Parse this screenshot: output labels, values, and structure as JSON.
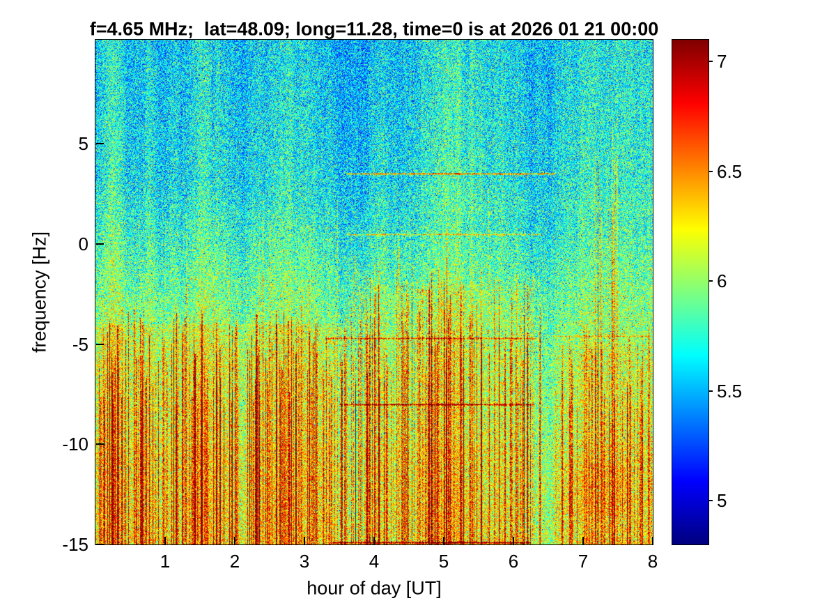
{
  "figure": {
    "background": "#ffffff"
  },
  "chart_data": {
    "type": "heatmap",
    "title": "f=4.65 MHz;  lat=48.09; long=11.28, time=0 is at 2026 01 21 00:00",
    "xlabel": "hour of day [UT]",
    "ylabel": "frequency [Hz]",
    "x_range": [
      0,
      8
    ],
    "y_range": [
      -15,
      10.2
    ],
    "x_ticks": [
      1,
      2,
      3,
      4,
      5,
      6,
      7,
      8
    ],
    "y_ticks": [
      5,
      0,
      -5,
      -10,
      -15
    ],
    "grid": false,
    "legend": false,
    "colorbar": {
      "position": "right",
      "colormap": "jet",
      "range": [
        4.8,
        7.1
      ],
      "ticks": [
        7,
        6.5,
        6,
        5.5,
        5
      ]
    },
    "field": {
      "description": "Noisy power spectrogram: blue/cyan speckle at high frequencies, green mid-band, orange/red enhancement below -5 Hz (strongest before hour 3.5), dense red vertical streaks in lower half, and discrete dark-red horizontal interference lines between hours ~3.4 and ~6.6.",
      "seed": 42,
      "noise_amplitude": 0.85,
      "base_profile": [
        [
          10.2,
          5.56
        ],
        [
          3,
          5.63
        ],
        [
          0,
          5.76
        ],
        [
          -3,
          5.9
        ],
        [
          -6,
          6.0
        ],
        [
          -10,
          6.05
        ],
        [
          -15,
          6.1
        ]
      ],
      "regions": [
        {
          "hours": [
            0,
            3.5
          ],
          "freqs": [
            -15,
            -4
          ],
          "amount": 0.12
        },
        {
          "hours": [
            3.8,
            6.3
          ],
          "freqs": [
            -15,
            -2
          ],
          "amount": 0.06
        },
        {
          "hours": [
            6.6,
            8
          ],
          "freqs": [
            -15,
            -5
          ],
          "amount": 0.06
        },
        {
          "hours": [
            0,
            8
          ],
          "freqs": [
            -15,
            -10
          ],
          "amount": 0.04
        },
        {
          "hours": [
            6.7,
            7.7
          ],
          "freqs": [
            -13.5,
            -11
          ],
          "amount": 0.08
        },
        {
          "hours": [
            4.5,
            8
          ],
          "freqs": [
            1.5,
            10.2
          ],
          "amount": 0.05
        }
      ],
      "horizontal_lines": [
        {
          "freq": 3.5,
          "hours": [
            3.6,
            6.6
          ],
          "intensity": 1.15
        },
        {
          "freq": 0.5,
          "hours": [
            3.6,
            6.4
          ],
          "intensity": 0.6
        },
        {
          "freq": -4.7,
          "hours": [
            3.3,
            6.35
          ],
          "intensity": 0.65
        },
        {
          "freq": -4.6,
          "hours": [
            6.55,
            7.95
          ],
          "intensity": 0.35
        },
        {
          "freq": -8.0,
          "hours": [
            3.5,
            6.3
          ],
          "intensity": 1.0
        },
        {
          "freq": -14.9,
          "hours": [
            3.4,
            6.25
          ],
          "intensity": 1.1
        }
      ],
      "vertical_streaks": [
        {
          "hours": [
            0.05,
            3.6
          ],
          "freq_top": [
            -3,
            -8
          ],
          "count": 160,
          "intensity": [
            0.35,
            1.0
          ]
        },
        {
          "hours": [
            3.6,
            6.4
          ],
          "freq_top": [
            -1,
            -7
          ],
          "count": 120,
          "intensity": [
            0.3,
            0.9
          ]
        },
        {
          "hours": [
            6.6,
            8.0
          ],
          "freq_top": [
            -4,
            -9
          ],
          "count": 45,
          "intensity": [
            0.25,
            0.7
          ]
        },
        {
          "hours": [
            0.9,
            5.9
          ],
          "freq_top": [
            3,
            -2
          ],
          "count": 25,
          "intensity": [
            0.2,
            0.5
          ]
        },
        {
          "hours": [
            7.15,
            7.5
          ],
          "freq_top": [
            6,
            1
          ],
          "count": 14,
          "intensity": [
            0.25,
            0.55
          ]
        }
      ]
    }
  }
}
